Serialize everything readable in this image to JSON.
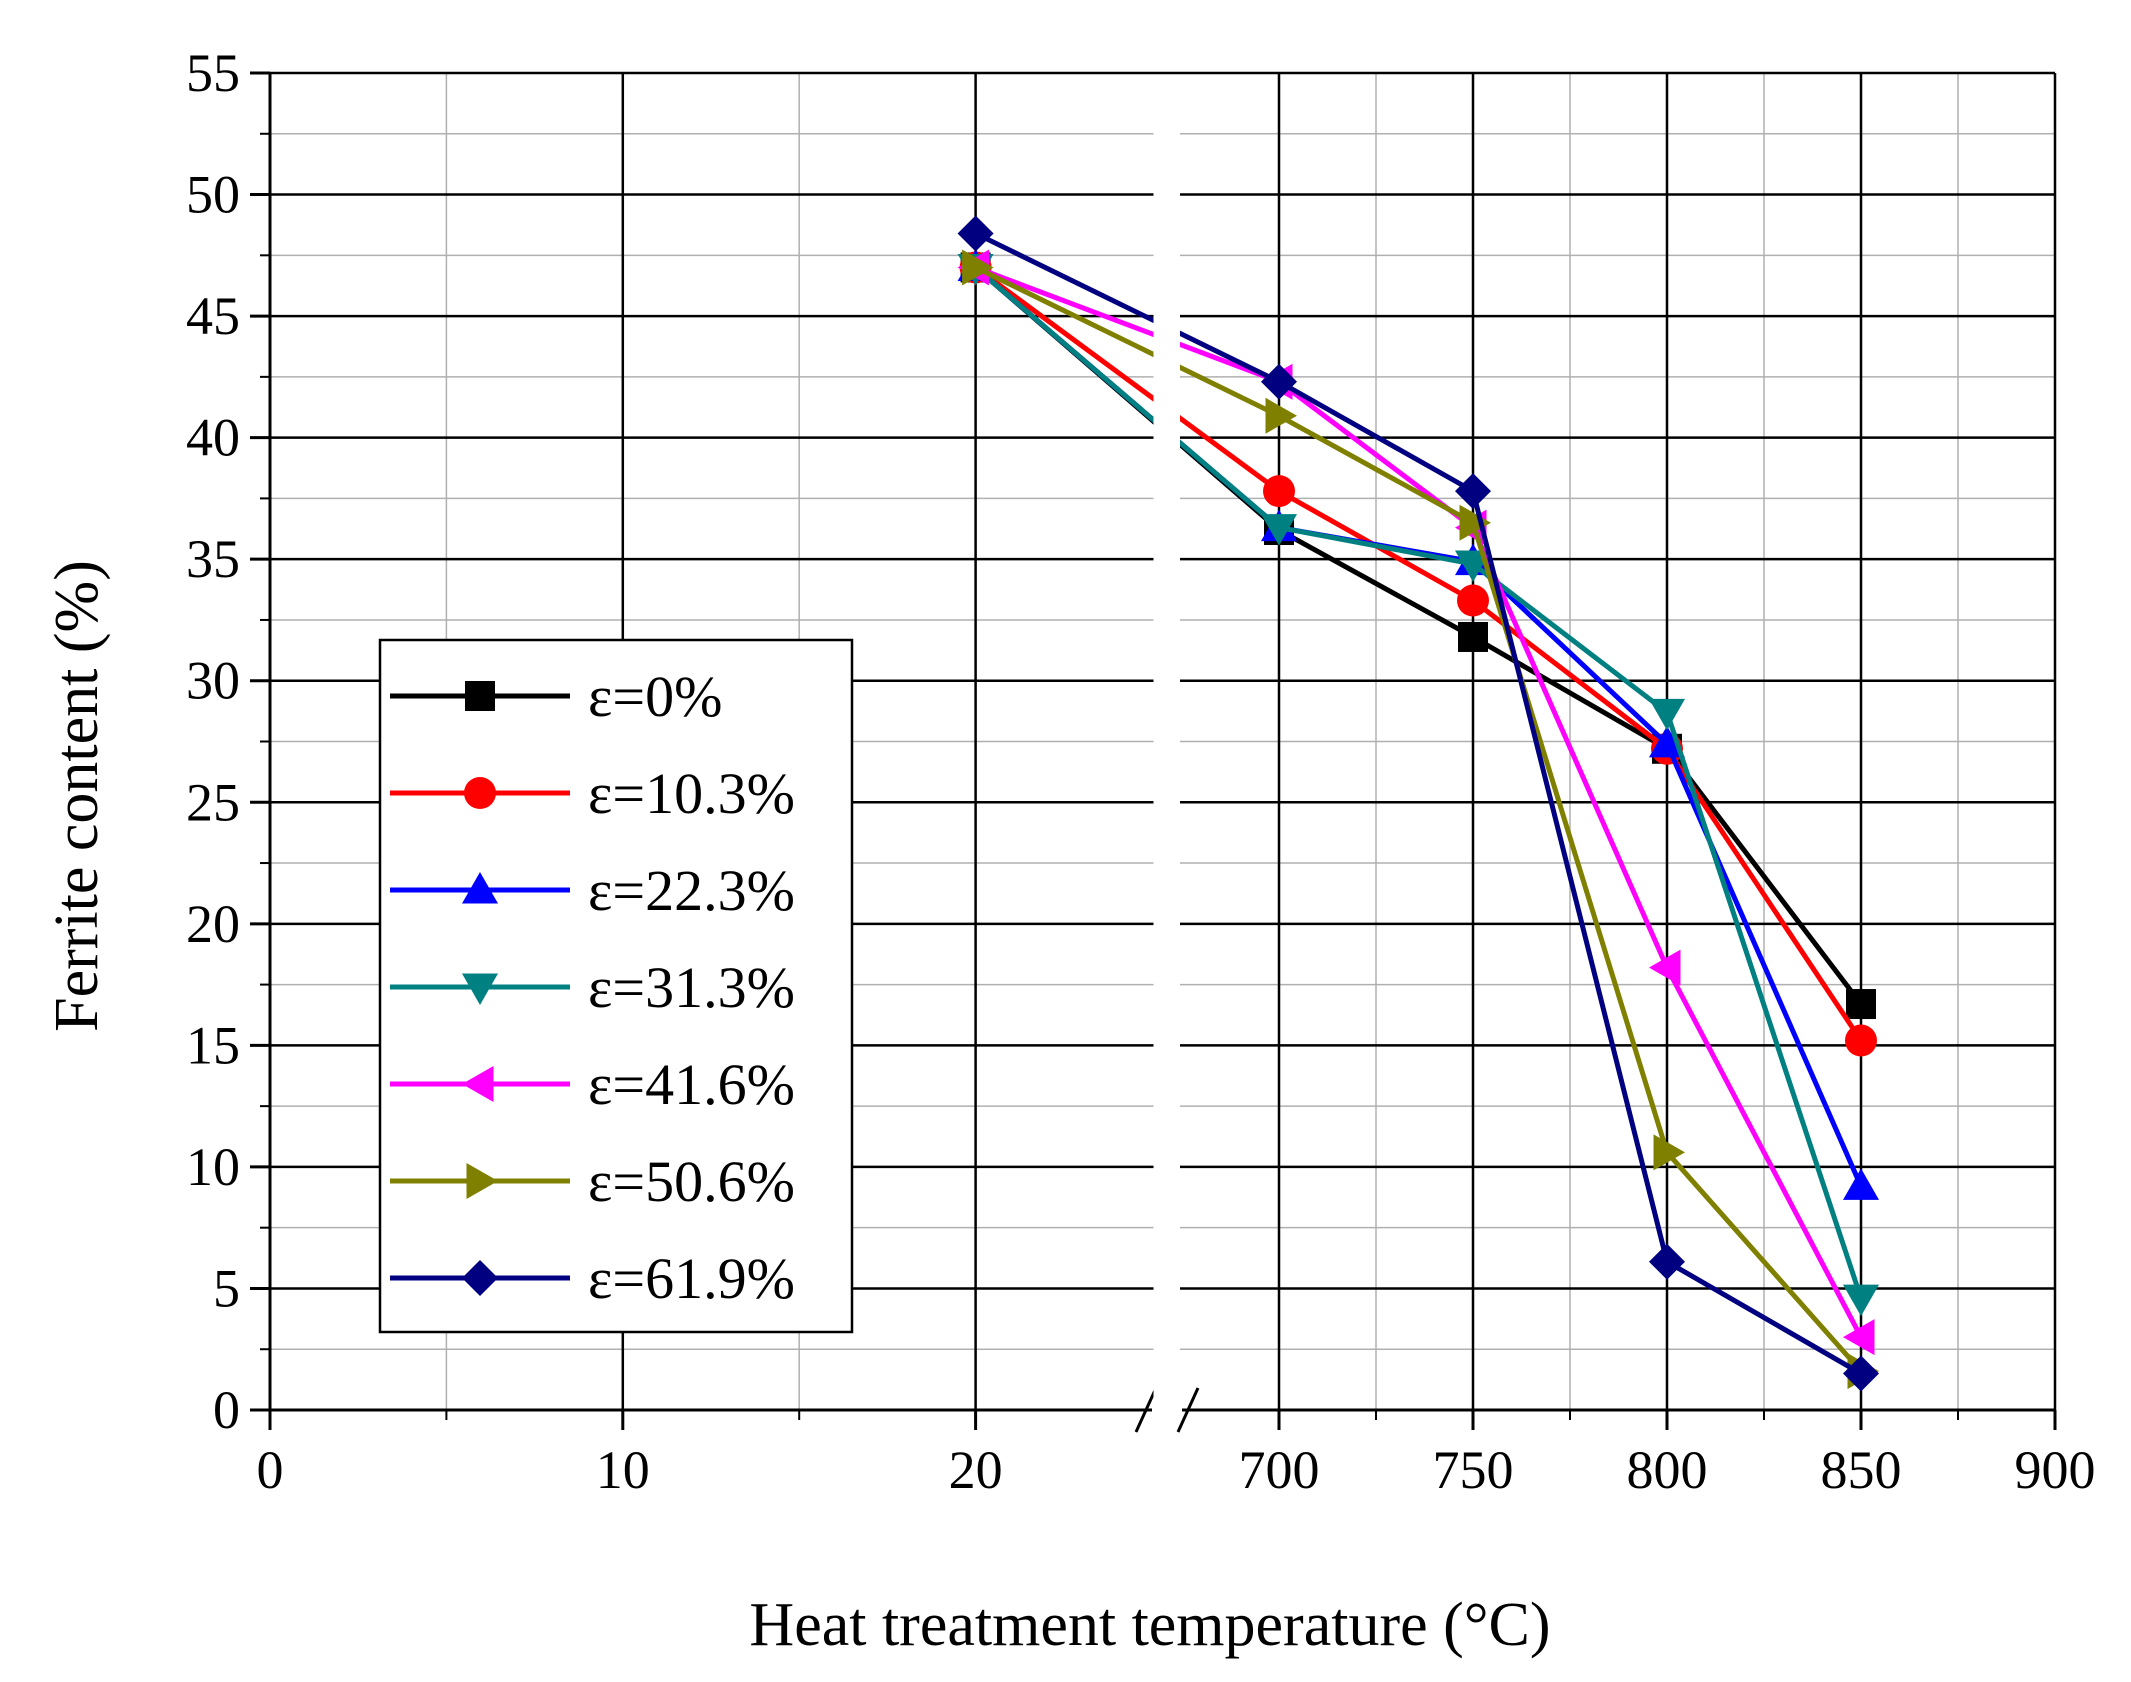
{
  "chart_data": {
    "type": "line",
    "title": "",
    "xlabel": "Heat treatment temperature (°C)",
    "ylabel": "Ferrite content (%)",
    "ylim": [
      0,
      55
    ],
    "yticks": [
      0,
      5,
      10,
      15,
      20,
      25,
      30,
      35,
      40,
      45,
      50,
      55
    ],
    "x_axis": {
      "broken": true,
      "left_segment": {
        "range": [
          0,
          25
        ],
        "ticks": [
          0,
          10,
          20
        ]
      },
      "right_segment": {
        "range": [
          675,
          900
        ],
        "ticks": [
          700,
          750,
          800,
          850,
          900
        ]
      }
    },
    "x": [
      20,
      700,
      750,
      800,
      850
    ],
    "grid": true,
    "legend_position": "lower-left",
    "series": [
      {
        "name": "ε=0%",
        "color": "#000000",
        "marker": "square",
        "values": [
          47.0,
          36.2,
          31.8,
          27.2,
          16.7
        ]
      },
      {
        "name": "ε=10.3%",
        "color": "#ff0000",
        "marker": "circle",
        "values": [
          47.0,
          37.8,
          33.3,
          27.2,
          15.2
        ]
      },
      {
        "name": "ε=22.3%",
        "color": "#0000ff",
        "marker": "triangle-up",
        "values": [
          47.0,
          36.3,
          34.9,
          27.4,
          9.2
        ]
      },
      {
        "name": "ε=31.3%",
        "color": "#008080",
        "marker": "triangle-down",
        "values": [
          47.0,
          36.3,
          34.8,
          28.7,
          4.6
        ]
      },
      {
        "name": "ε=41.6%",
        "color": "#ff00ff",
        "marker": "triangle-left",
        "values": [
          47.0,
          42.3,
          36.3,
          18.2,
          3.0
        ]
      },
      {
        "name": "ε=50.6%",
        "color": "#808000",
        "marker": "triangle-right",
        "values": [
          47.0,
          40.9,
          36.5,
          10.6,
          1.6
        ]
      },
      {
        "name": "ε=61.9%",
        "color": "#000080",
        "marker": "diamond",
        "values": [
          48.4,
          42.3,
          37.8,
          6.1,
          1.5
        ]
      }
    ]
  }
}
